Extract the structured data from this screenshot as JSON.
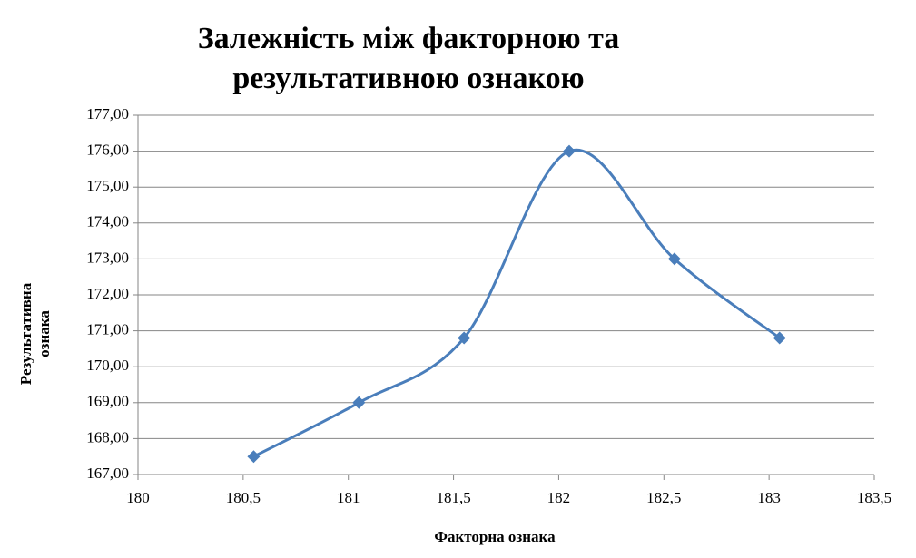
{
  "chart_data": {
    "type": "line",
    "title": [
      "Залежність між факторною та",
      "результативною ознакою"
    ],
    "x_label": "Факторна ознака",
    "y_label": [
      "Результативна",
      "ознака"
    ],
    "series": [
      {
        "name": "Результативна ознака",
        "color": "#4a7ebb",
        "x": [
          180.55,
          181.05,
          181.55,
          182.05,
          182.55,
          183.05
        ],
        "values": [
          167.5,
          169,
          170.8,
          176,
          173,
          170.8
        ]
      }
    ],
    "xlim": [
      180,
      183.5
    ],
    "xticks": [
      180,
      {
        "value": 180.5,
        "label": "180,5"
      },
      181,
      {
        "value": 181.5,
        "label": "181,5"
      },
      182,
      {
        "value": 182.5,
        "label": "182,5"
      },
      183,
      {
        "value": 183.5,
        "label": "183,5"
      }
    ],
    "ylim": [
      167,
      177
    ],
    "yticks": [
      {
        "value": 167,
        "label": "167,00"
      },
      {
        "value": 168,
        "label": "168,00"
      },
      {
        "value": 169,
        "label": "169,00"
      },
      {
        "value": 170,
        "label": "170,00"
      },
      {
        "value": 171,
        "label": "171,00"
      },
      {
        "value": 172,
        "label": "172,00"
      },
      {
        "value": 173,
        "label": "173,00"
      },
      {
        "value": 174,
        "label": "174,00"
      },
      {
        "value": 175,
        "label": "175,00"
      },
      {
        "value": 176,
        "label": "176,00"
      },
      {
        "value": 177,
        "label": "177,00"
      }
    ],
    "grid": true,
    "smooth": true,
    "marker": "diamond"
  }
}
